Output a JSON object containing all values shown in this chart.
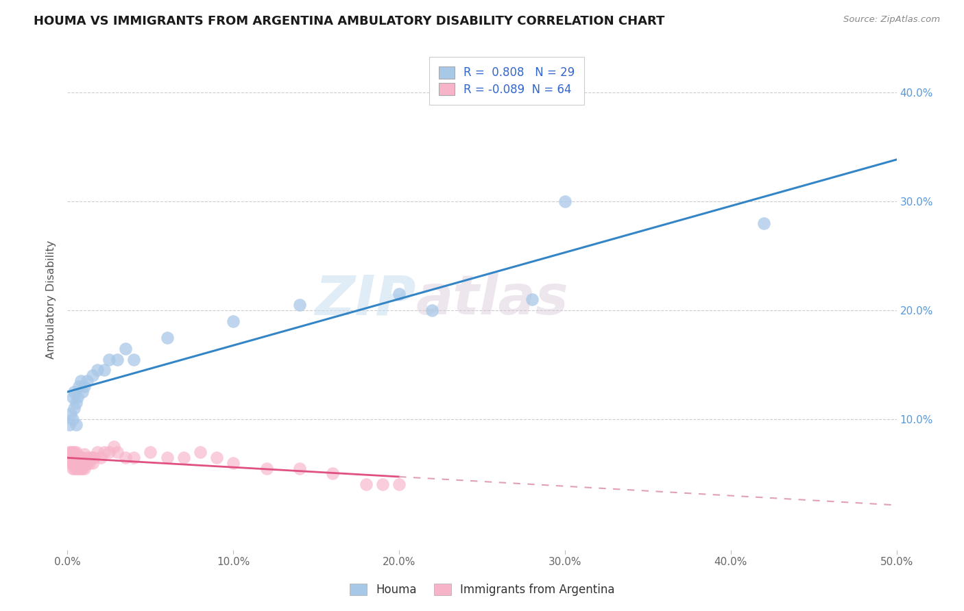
{
  "title": "HOUMA VS IMMIGRANTS FROM ARGENTINA AMBULATORY DISABILITY CORRELATION CHART",
  "source": "Source: ZipAtlas.com",
  "ylabel": "Ambulatory Disability",
  "xlim": [
    0.0,
    0.5
  ],
  "ylim": [
    -0.02,
    0.44
  ],
  "houma_R": 0.808,
  "houma_N": 29,
  "argentina_R": -0.089,
  "argentina_N": 64,
  "houma_color": "#a8c8e8",
  "houma_line_color": "#3385c6",
  "argentina_color": "#f7b3c8",
  "argentina_line_color": "#e05080",
  "argentina_line_color_dashed": "#e0a0b8",
  "watermark_zip": "ZIP",
  "watermark_atlas": "atlas",
  "background_color": "#ffffff",
  "grid_color": "#cccccc",
  "houma_x": [
    0.001,
    0.002,
    0.003,
    0.003,
    0.004,
    0.004,
    0.005,
    0.005,
    0.006,
    0.007,
    0.008,
    0.009,
    0.01,
    0.012,
    0.015,
    0.018,
    0.022,
    0.025,
    0.03,
    0.035,
    0.04,
    0.06,
    0.1,
    0.14,
    0.2,
    0.22,
    0.28,
    0.3,
    0.42
  ],
  "houma_y": [
    0.095,
    0.105,
    0.1,
    0.12,
    0.11,
    0.125,
    0.095,
    0.115,
    0.12,
    0.13,
    0.135,
    0.125,
    0.13,
    0.135,
    0.14,
    0.145,
    0.145,
    0.155,
    0.155,
    0.165,
    0.155,
    0.175,
    0.19,
    0.205,
    0.215,
    0.2,
    0.21,
    0.3,
    0.28
  ],
  "argentina_x": [
    0.001,
    0.001,
    0.001,
    0.002,
    0.002,
    0.002,
    0.003,
    0.003,
    0.003,
    0.003,
    0.004,
    0.004,
    0.004,
    0.004,
    0.004,
    0.005,
    0.005,
    0.005,
    0.005,
    0.005,
    0.005,
    0.006,
    0.006,
    0.006,
    0.007,
    0.007,
    0.007,
    0.008,
    0.008,
    0.008,
    0.009,
    0.009,
    0.009,
    0.01,
    0.01,
    0.01,
    0.01,
    0.012,
    0.012,
    0.013,
    0.014,
    0.015,
    0.015,
    0.016,
    0.018,
    0.02,
    0.022,
    0.025,
    0.028,
    0.03,
    0.035,
    0.04,
    0.05,
    0.06,
    0.07,
    0.08,
    0.09,
    0.1,
    0.12,
    0.14,
    0.16,
    0.18,
    0.19,
    0.2
  ],
  "argentina_y": [
    0.07,
    0.065,
    0.068,
    0.06,
    0.065,
    0.07,
    0.055,
    0.06,
    0.065,
    0.07,
    0.055,
    0.058,
    0.06,
    0.065,
    0.07,
    0.055,
    0.06,
    0.063,
    0.065,
    0.068,
    0.07,
    0.055,
    0.06,
    0.065,
    0.055,
    0.058,
    0.065,
    0.055,
    0.06,
    0.065,
    0.055,
    0.06,
    0.065,
    0.055,
    0.058,
    0.062,
    0.068,
    0.06,
    0.065,
    0.06,
    0.065,
    0.06,
    0.065,
    0.065,
    0.07,
    0.065,
    0.07,
    0.07,
    0.075,
    0.07,
    0.065,
    0.065,
    0.07,
    0.065,
    0.065,
    0.07,
    0.065,
    0.06,
    0.055,
    0.055,
    0.05,
    0.04,
    0.04,
    0.04
  ]
}
